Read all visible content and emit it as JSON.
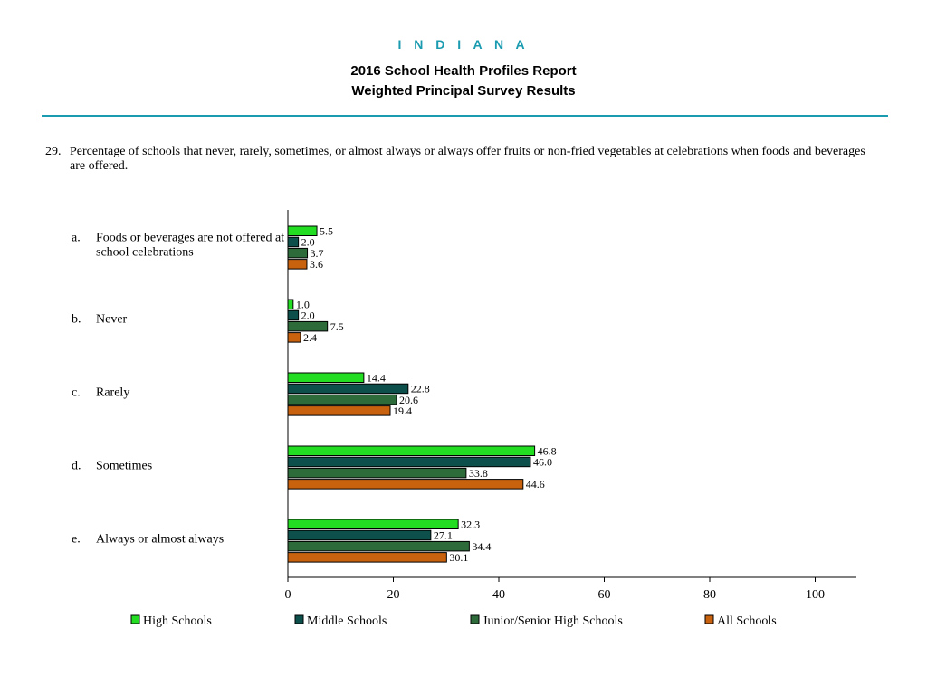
{
  "header": {
    "state": "I N D I A N A",
    "title_line1": "2016 School Health Profiles Report",
    "title_line2": "Weighted Principal Survey Results"
  },
  "question": {
    "number": "29.",
    "text": "Percentage of schools that never, rarely, sometimes, or almost always or always offer fruits or non-fried vegetables at celebrations when foods and beverages are offered."
  },
  "colors": {
    "High Schools": "#22dd22",
    "Middle Schools": "#0d4f4b",
    "Junior/Senior High Schools": "#2e6b3a",
    "All Schools": "#c8620f"
  },
  "chart_data": {
    "type": "bar",
    "orientation": "horizontal",
    "categories": [
      {
        "letter": "a.",
        "lines": [
          "Foods or beverages are not offered at",
          "school celebrations"
        ]
      },
      {
        "letter": "b.",
        "lines": [
          "Never"
        ]
      },
      {
        "letter": "c.",
        "lines": [
          "Rarely"
        ]
      },
      {
        "letter": "d.",
        "lines": [
          "Sometimes"
        ]
      },
      {
        "letter": "e.",
        "lines": [
          "Always or almost always"
        ]
      }
    ],
    "series": [
      {
        "name": "High Schools",
        "values": [
          5.5,
          1.0,
          14.4,
          46.8,
          32.3
        ],
        "labels": [
          "5.5",
          "1.0",
          "14.4",
          "46.8",
          "32.3"
        ]
      },
      {
        "name": "Middle Schools",
        "values": [
          2.0,
          2.0,
          22.8,
          46.0,
          27.1
        ],
        "labels": [
          "2.0",
          "2.0",
          "22.8",
          "46.0",
          "27.1"
        ]
      },
      {
        "name": "Junior/Senior High Schools",
        "values": [
          3.7,
          7.5,
          20.6,
          33.8,
          34.4
        ],
        "labels": [
          "3.7",
          "7.5",
          "20.6",
          "33.8",
          "34.4"
        ]
      },
      {
        "name": "All Schools",
        "values": [
          3.6,
          2.4,
          19.4,
          44.6,
          30.1
        ],
        "labels": [
          "3.6",
          "2.4",
          "19.4",
          "44.6",
          "30.1"
        ]
      }
    ],
    "xlim": [
      0,
      100
    ],
    "xticks": [
      "0",
      "20",
      "40",
      "60",
      "80",
      "100"
    ],
    "legend_position": "bottom",
    "grid": false
  }
}
